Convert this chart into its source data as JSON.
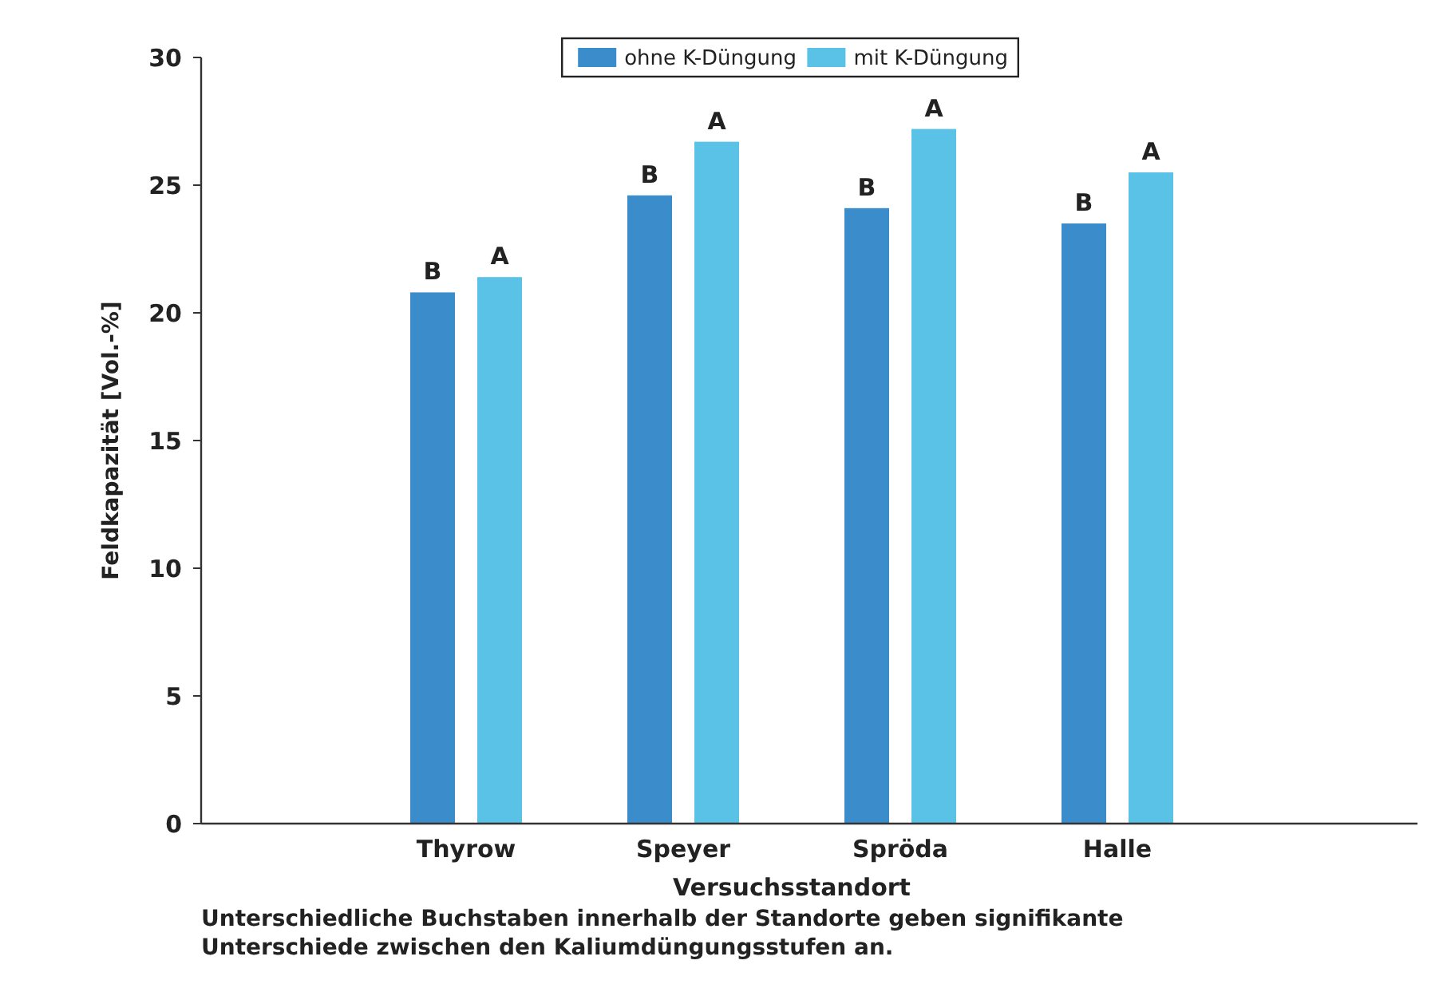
{
  "chart_data": {
    "type": "bar",
    "xlabel": "Versuchsstandort",
    "ylabel": "Feldkapazität [Vol.-%]",
    "categories": [
      "Thyrow",
      "Speyer",
      "Spröda",
      "Halle"
    ],
    "series": [
      {
        "name": "ohne K-Düngung",
        "color": "#3a8dca",
        "values": [
          20.8,
          24.6,
          24.1,
          23.5
        ],
        "value_labels": [
          "B",
          "B",
          "B",
          "B"
        ]
      },
      {
        "name": "mit K-Düngung",
        "color": "#5bc2e7",
        "values": [
          21.4,
          26.7,
          27.2,
          25.5
        ],
        "value_labels": [
          "A",
          "A",
          "A",
          "A"
        ]
      }
    ],
    "ylim": [
      0,
      30
    ],
    "yticks": [
      0,
      5,
      10,
      15,
      20,
      25,
      30
    ],
    "grid": false,
    "legend": "top",
    "annotations": [
      "Unterschiedliche Buchstaben innerhalb der Standorte geben signifikante Unterschiede zwischen den Kaliumdüngungsstufen an."
    ]
  }
}
